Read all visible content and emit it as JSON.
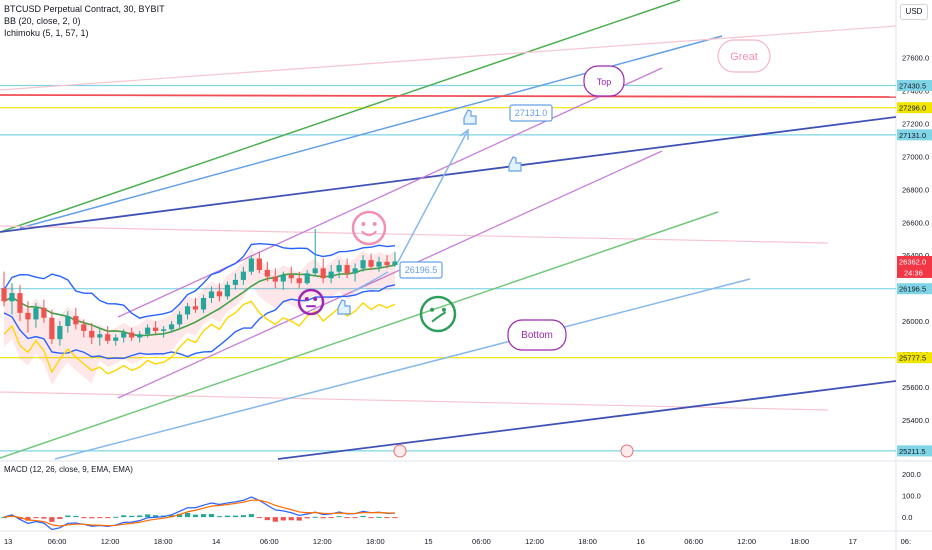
{
  "header": {
    "symbol_line": "BTCUSD Perpetual Contract, 30, BYBIT",
    "indicators": [
      "BB (20, close, 2, 0)",
      "Ichimoku (5, 1, 57, 1)"
    ],
    "currency": "USD"
  },
  "macd": {
    "legend": "MACD (12, 26, close, 9, EMA, EMA)",
    "ticks": [
      {
        "value": 200,
        "label": "200.0"
      },
      {
        "value": 100,
        "label": "100.0"
      },
      {
        "value": 0,
        "label": "0.0"
      }
    ],
    "range": [
      -60,
      210
    ]
  },
  "chart_data": {
    "type": "candlestick",
    "symbol": "BTCUSD",
    "timeframe": "30",
    "ylim": [
      25150,
      27950
    ],
    "y_ticks": [
      {
        "value": 27600,
        "label": "27600.0"
      },
      {
        "value": 27400,
        "label": "27400.0"
      },
      {
        "value": 27200,
        "label": "27200.0"
      },
      {
        "value": 27000,
        "label": "27000.0"
      },
      {
        "value": 26800,
        "label": "26800.0"
      },
      {
        "value": 26600,
        "label": "26600.0"
      },
      {
        "value": 26400,
        "label": "26400.0"
      },
      {
        "value": 26000,
        "label": "26000.0"
      },
      {
        "value": 25800,
        "label": "25800.0"
      },
      {
        "value": 25600,
        "label": "25600.0"
      },
      {
        "value": 25400,
        "label": "25400.0"
      }
    ],
    "x_ticks": [
      "13",
      "06:00",
      "12:00",
      "18:00",
      "14",
      "06:00",
      "12:00",
      "18:00",
      "15",
      "06:00",
      "12:00",
      "18:00",
      "16",
      "06:00",
      "12:00",
      "18:00",
      "17",
      "06:"
    ],
    "price_labels": [
      {
        "value": 27430.5,
        "label": "27430.5",
        "color": "#7fd4e6"
      },
      {
        "value": 27296.0,
        "label": "27296.0",
        "color": "#f2e600"
      },
      {
        "value": 27131.0,
        "label": "27131.0",
        "color": "#7fd4e6"
      },
      {
        "value": 26362.0,
        "label": "26362.0",
        "color": "#f23645"
      },
      {
        "value": 26196.5,
        "label": "26196.5",
        "color": "#7fd4e6"
      },
      {
        "value": 25777.5,
        "label": "25777.5",
        "color": "#f2e600"
      },
      {
        "value": 25211.5,
        "label": "25211.5",
        "color": "#7fd4e6"
      }
    ],
    "last_price_countdown": "24:36",
    "annotations": [
      {
        "text": "Great",
        "color": "#f48fb1"
      },
      {
        "text": "Top",
        "color": "#9c27b0"
      },
      {
        "text": "Bottom",
        "color": "#9c27b0"
      },
      {
        "text": "27131.0",
        "color": "#64a0e6"
      },
      {
        "text": "26196.5",
        "color": "#64a0e6"
      }
    ],
    "candles": [
      [
        26200,
        26300,
        26090,
        26120
      ],
      [
        26120,
        26230,
        26040,
        26170
      ],
      [
        26170,
        26220,
        26000,
        26050
      ],
      [
        26050,
        26120,
        25930,
        26010
      ],
      [
        26010,
        26110,
        25960,
        26080
      ],
      [
        26080,
        26130,
        25990,
        26020
      ],
      [
        26020,
        26070,
        25860,
        25890
      ],
      [
        25890,
        26000,
        25850,
        25970
      ],
      [
        25970,
        26060,
        25930,
        26030
      ],
      [
        26030,
        26080,
        25950,
        25980
      ],
      [
        25980,
        26010,
        25900,
        25940
      ],
      [
        25940,
        25990,
        25860,
        25900
      ],
      [
        25900,
        25950,
        25850,
        25920
      ],
      [
        25920,
        25970,
        25860,
        25880
      ],
      [
        25880,
        25920,
        25850,
        25900
      ],
      [
        25900,
        25950,
        25870,
        25930
      ],
      [
        25930,
        25960,
        25880,
        25900
      ],
      [
        25900,
        25940,
        25870,
        25920
      ],
      [
        25920,
        25980,
        25900,
        25960
      ],
      [
        25960,
        26000,
        25920,
        25940
      ],
      [
        25940,
        25970,
        25900,
        25950
      ],
      [
        25950,
        26000,
        25930,
        25980
      ],
      [
        25980,
        26060,
        25960,
        26040
      ],
      [
        26040,
        26110,
        26010,
        26090
      ],
      [
        26090,
        26140,
        26050,
        26070
      ],
      [
        26070,
        26160,
        26050,
        26140
      ],
      [
        26140,
        26210,
        26110,
        26180
      ],
      [
        26180,
        26230,
        26120,
        26150
      ],
      [
        26150,
        26240,
        26130,
        26220
      ],
      [
        26220,
        26290,
        26190,
        26250
      ],
      [
        26250,
        26330,
        26220,
        26300
      ],
      [
        26300,
        26400,
        26280,
        26380
      ],
      [
        26380,
        26420,
        26290,
        26310
      ],
      [
        26310,
        26360,
        26240,
        26270
      ],
      [
        26270,
        26320,
        26200,
        26240
      ],
      [
        26240,
        26300,
        26190,
        26280
      ],
      [
        26280,
        26330,
        26230,
        26260
      ],
      [
        26260,
        26300,
        26200,
        26230
      ],
      [
        26230,
        26310,
        26220,
        26290
      ],
      [
        26290,
        26560,
        26280,
        26320
      ],
      [
        26320,
        26380,
        26230,
        26260
      ],
      [
        26260,
        26340,
        26230,
        26300
      ],
      [
        26300,
        26370,
        26260,
        26340
      ],
      [
        26340,
        26380,
        26260,
        26290
      ],
      [
        26290,
        26350,
        26240,
        26320
      ],
      [
        26320,
        26400,
        26300,
        26370
      ],
      [
        26370,
        26410,
        26310,
        26330
      ],
      [
        26330,
        26390,
        26300,
        26360
      ],
      [
        26360,
        26400,
        26320,
        26340
      ],
      [
        26340,
        26420,
        26330,
        26362
      ]
    ],
    "drawings": [
      {
        "type": "hline",
        "y": 27430.5,
        "color": "#7fd4e6"
      },
      {
        "type": "hline",
        "y": 27296.0,
        "color": "#f2e600"
      },
      {
        "type": "hline",
        "y": 27131.0,
        "color": "#7fd4e6"
      },
      {
        "type": "hline",
        "y": 26196.5,
        "color": "#7fd4e6"
      },
      {
        "type": "hline",
        "y": 25777.5,
        "color": "#f2e600"
      },
      {
        "type": "hline",
        "y": 25211.5,
        "color": "#7fd4e6"
      }
    ]
  }
}
